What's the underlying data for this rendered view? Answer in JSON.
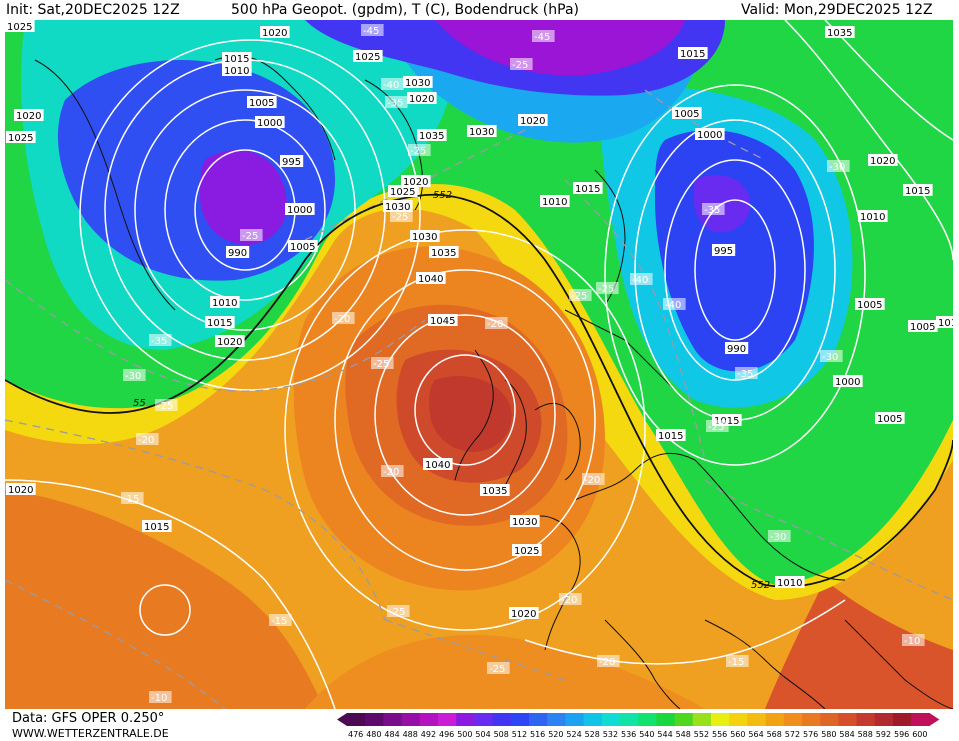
{
  "header": {
    "init": "Init: Sat,20DEC2025 12Z",
    "title": "500 hPa Geopot. (gpdm), T (C), Bodendruck (hPa)",
    "valid": "Valid: Mon,29DEC2025 12Z"
  },
  "footer": {
    "data_source": "Data: GFS OPER 0.250°",
    "website": "WWW.WETTERZENTRALE.DE"
  },
  "legend": {
    "values": [
      "476",
      "480",
      "484",
      "488",
      "492",
      "496",
      "500",
      "504",
      "508",
      "512",
      "516",
      "520",
      "524",
      "528",
      "532",
      "536",
      "540",
      "544",
      "548",
      "552",
      "556",
      "560",
      "564",
      "568",
      "572",
      "576",
      "580",
      "584",
      "588",
      "592",
      "596",
      "600"
    ],
    "colors": [
      "#4c0a52",
      "#5d0a6d",
      "#7a0d8c",
      "#960fa6",
      "#b413c2",
      "#c81fd6",
      "#8c1be0",
      "#6a2bf0",
      "#4236f2",
      "#2d46f5",
      "#2f63f2",
      "#2e82f2",
      "#1fa1f2",
      "#12c3e8",
      "#10dcd4",
      "#0fe3a8",
      "#12e36e",
      "#19d73c",
      "#4fd61e",
      "#98e01a",
      "#e6ef10",
      "#f2d30e",
      "#f4bb10",
      "#f2a314",
      "#ef8e1c",
      "#e97a22",
      "#de6526",
      "#d5502a",
      "#c43a2c",
      "#b02a2e",
      "#9e1a2a",
      "#c0105a"
    ]
  },
  "map_labels": {
    "isobars": [
      "1020",
      "1015",
      "1010",
      "1025",
      "1005",
      "1000",
      "995",
      "1000",
      "1005",
      "990",
      "1010",
      "1015",
      "1020",
      "1030",
      "1035",
      "1030",
      "1025",
      "1020",
      "1020",
      "1030",
      "1035",
      "1040",
      "1045",
      "1040",
      "1035",
      "1030",
      "1025",
      "1020",
      "1020",
      "1025",
      "1020",
      "1015",
      "1015",
      "1015",
      "1010",
      "1015",
      "1005",
      "1000",
      "995",
      "990",
      "1020",
      "1015",
      "1010",
      "1005",
      "1005",
      "1000",
      "1005",
      "1010",
      "1015",
      "1010",
      "1035",
      "1015",
      "1020",
      "1030",
      "1025"
    ],
    "isotherms": [
      "-45",
      "-45",
      "-25",
      "-40",
      "-35",
      "-25",
      "-25",
      "-20",
      "-35",
      "-30",
      "-25",
      "-20",
      "-25",
      "-20",
      "-20",
      "-15",
      "-15",
      "-10",
      "-25",
      "-20",
      "-20",
      "-25",
      "-20",
      "-15",
      "-10",
      "-30",
      "-35",
      "-40",
      "-40",
      "-35",
      "-30",
      "-25",
      "-25",
      "-25",
      "-30",
      "-25"
    ],
    "contour_552": [
      "552",
      "55",
      "552"
    ]
  }
}
